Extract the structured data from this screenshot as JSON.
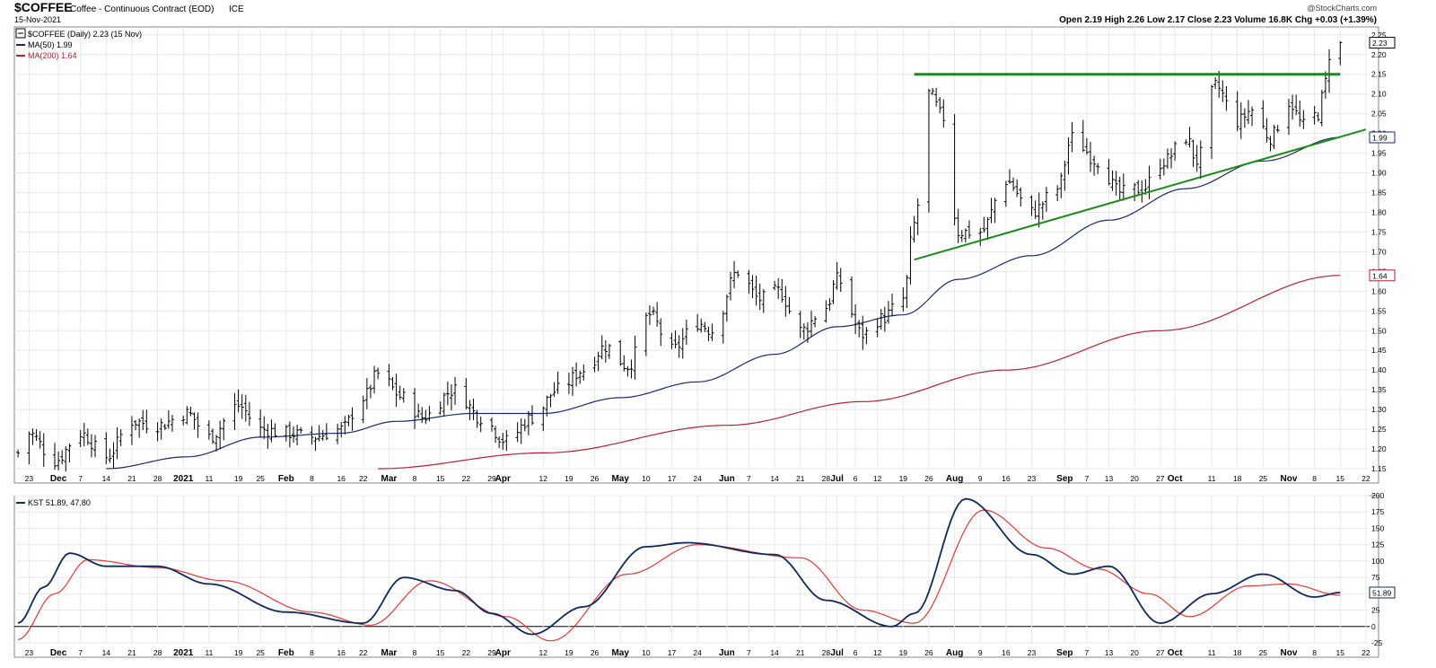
{
  "header": {
    "symbol": "$COFFEE",
    "name": "Coffee - Continuous Contract (EOD)",
    "exchange": "ICE",
    "date": "15-Nov-2021",
    "copyright": "@StockCharts.com",
    "ohlc_line": "Open 2.19  High 2.26  Low 2.17  Close 2.23  Volume 16.8K  Chg +0.03 (+1.39%)"
  },
  "legend": {
    "price": "$COFFEE (Daily) 2.23 (15 Nov)",
    "ma50": "MA(50) 1.99",
    "ma200": "MA(200) 1.64",
    "kst": "KST 51.89, 47.80"
  },
  "colors": {
    "price_bars": "#000000",
    "ma50": "#1a2a6c",
    "ma200": "#b32235",
    "trendline": "#1a8a1a",
    "kst": "#0f2a5a",
    "kst_signal": "#e03a3a",
    "grid": "#e8e8e8"
  },
  "axis": {
    "months": [
      {
        "label": "Dec",
        "bold": true
      },
      {
        "label": "2021",
        "bold": true
      },
      {
        "label": "Feb",
        "bold": true
      },
      {
        "label": "Mar",
        "bold": true
      },
      {
        "label": "Apr",
        "bold": true
      },
      {
        "label": "May",
        "bold": true
      },
      {
        "label": "Jun",
        "bold": true
      },
      {
        "label": "Jul",
        "bold": true
      },
      {
        "label": "Aug",
        "bold": true
      },
      {
        "label": "Sep",
        "bold": true
      },
      {
        "label": "Oct",
        "bold": true
      },
      {
        "label": "Nov",
        "bold": true
      }
    ],
    "x_tick_labels": [
      "23",
      "Dec",
      "7",
      "14",
      "21",
      "28",
      "2021",
      "11",
      "19",
      "25",
      "Feb",
      "8",
      "16",
      "22",
      "Mar",
      "8",
      "15",
      "22",
      "29",
      "Apr",
      "12",
      "19",
      "26",
      "May",
      "10",
      "17",
      "24",
      "Jun",
      "7",
      "14",
      "21",
      "28",
      "Jul",
      "6",
      "12",
      "19",
      "26",
      "Aug",
      "9",
      "16",
      "23",
      "Sep",
      "7",
      "13",
      "20",
      "27",
      "Oct",
      "11",
      "18",
      "25",
      "Nov",
      "8",
      "15",
      "22"
    ]
  },
  "chart_data": [
    {
      "type": "ohlc-bar",
      "title": "$COFFEE (Daily) 2.23 (15 Nov)",
      "ylim": [
        1.15,
        2.27
      ],
      "y_ticks": [
        "2.25",
        "2.20",
        "2.15",
        "2.10",
        "2.05",
        "2.00",
        "1.95",
        "1.90",
        "1.85",
        "1.80",
        "1.75",
        "1.70",
        "1.65",
        "1.60",
        "1.55",
        "1.50",
        "1.45",
        "1.40",
        "1.35",
        "1.30",
        "1.25",
        "1.20",
        "1.15"
      ],
      "last_value_tag": "2.23",
      "price_key_points": [
        {
          "date": "2020-11-20",
          "close": 1.19
        },
        {
          "date": "2020-11-23",
          "close": 1.24
        },
        {
          "date": "2020-11-30",
          "close": 1.17
        },
        {
          "date": "2020-12-07",
          "close": 1.24
        },
        {
          "date": "2020-12-14",
          "close": 1.18
        },
        {
          "date": "2020-12-21",
          "close": 1.27
        },
        {
          "date": "2020-12-28",
          "close": 1.26
        },
        {
          "date": "2021-01-05",
          "close": 1.29
        },
        {
          "date": "2021-01-11",
          "close": 1.23
        },
        {
          "date": "2021-01-19",
          "close": 1.31
        },
        {
          "date": "2021-01-25",
          "close": 1.25
        },
        {
          "date": "2021-02-01",
          "close": 1.24
        },
        {
          "date": "2021-02-08",
          "close": 1.23
        },
        {
          "date": "2021-02-16",
          "close": 1.25
        },
        {
          "date": "2021-02-22",
          "close": 1.33
        },
        {
          "date": "2021-02-26",
          "close": 1.39
        },
        {
          "date": "2021-03-05",
          "close": 1.33
        },
        {
          "date": "2021-03-10",
          "close": 1.28
        },
        {
          "date": "2021-03-19",
          "close": 1.35
        },
        {
          "date": "2021-03-26",
          "close": 1.28
        },
        {
          "date": "2021-04-02",
          "close": 1.22
        },
        {
          "date": "2021-04-09",
          "close": 1.28
        },
        {
          "date": "2021-04-16",
          "close": 1.35
        },
        {
          "date": "2021-04-23",
          "close": 1.4
        },
        {
          "date": "2021-04-29",
          "close": 1.46
        },
        {
          "date": "2021-05-05",
          "close": 1.41
        },
        {
          "date": "2021-05-11",
          "close": 1.54
        },
        {
          "date": "2021-05-17",
          "close": 1.45
        },
        {
          "date": "2021-05-24",
          "close": 1.52
        },
        {
          "date": "2021-05-28",
          "close": 1.5
        },
        {
          "date": "2021-06-04",
          "close": 1.65
        },
        {
          "date": "2021-06-10",
          "close": 1.58
        },
        {
          "date": "2021-06-15",
          "close": 1.6
        },
        {
          "date": "2021-06-21",
          "close": 1.5
        },
        {
          "date": "2021-06-28",
          "close": 1.56
        },
        {
          "date": "2021-07-01",
          "close": 1.63
        },
        {
          "date": "2021-07-08",
          "close": 1.49
        },
        {
          "date": "2021-07-13",
          "close": 1.53
        },
        {
          "date": "2021-07-19",
          "close": 1.58
        },
        {
          "date": "2021-07-22",
          "close": 1.77
        },
        {
          "date": "2021-07-26",
          "close": 2.1
        },
        {
          "date": "2021-07-30",
          "close": 2.04
        },
        {
          "date": "2021-08-03",
          "close": 1.75
        },
        {
          "date": "2021-08-09",
          "close": 1.75
        },
        {
          "date": "2021-08-16",
          "close": 1.88
        },
        {
          "date": "2021-08-23",
          "close": 1.8
        },
        {
          "date": "2021-08-30",
          "close": 1.86
        },
        {
          "date": "2021-09-03",
          "close": 1.99
        },
        {
          "date": "2021-09-10",
          "close": 1.93
        },
        {
          "date": "2021-09-16",
          "close": 1.85
        },
        {
          "date": "2021-09-22",
          "close": 1.86
        },
        {
          "date": "2021-09-28",
          "close": 1.93
        },
        {
          "date": "2021-10-04",
          "close": 1.99
        },
        {
          "date": "2021-10-07",
          "close": 1.93
        },
        {
          "date": "2021-10-12",
          "close": 2.12
        },
        {
          "date": "2021-10-18",
          "close": 2.03
        },
        {
          "date": "2021-10-22",
          "close": 2.06
        },
        {
          "date": "2021-10-27",
          "close": 1.99
        },
        {
          "date": "2021-11-01",
          "close": 2.08
        },
        {
          "date": "2021-11-05",
          "close": 2.02
        },
        {
          "date": "2021-11-09",
          "close": 2.05
        },
        {
          "date": "2021-11-11",
          "close": 2.13
        },
        {
          "date": "2021-11-12",
          "close": 2.2
        },
        {
          "date": "2021-11-15",
          "close": 2.23
        }
      ],
      "series": [
        {
          "name": "MA(50) 1.99",
          "value_tag": "1.99",
          "points": [
            {
              "date": "2020-12-14",
              "value": 1.15
            },
            {
              "date": "2021-01-05",
              "value": 1.18
            },
            {
              "date": "2021-01-25",
              "value": 1.23
            },
            {
              "date": "2021-02-16",
              "value": 1.24
            },
            {
              "date": "2021-03-03",
              "value": 1.27
            },
            {
              "date": "2021-03-24",
              "value": 1.29
            },
            {
              "date": "2021-04-12",
              "value": 1.29
            },
            {
              "date": "2021-05-03",
              "value": 1.33
            },
            {
              "date": "2021-05-24",
              "value": 1.37
            },
            {
              "date": "2021-06-14",
              "value": 1.44
            },
            {
              "date": "2021-07-01",
              "value": 1.51
            },
            {
              "date": "2021-07-19",
              "value": 1.54
            },
            {
              "date": "2021-08-03",
              "value": 1.63
            },
            {
              "date": "2021-08-23",
              "value": 1.69
            },
            {
              "date": "2021-09-13",
              "value": 1.78
            },
            {
              "date": "2021-10-04",
              "value": 1.86
            },
            {
              "date": "2021-10-25",
              "value": 1.93
            },
            {
              "date": "2021-11-15",
              "value": 1.99
            }
          ]
        },
        {
          "name": "MA(200) 1.64",
          "value_tag": "1.64",
          "points": [
            {
              "date": "2021-02-26",
              "value": 1.15
            },
            {
              "date": "2021-04-12",
              "value": 1.19
            },
            {
              "date": "2021-06-01",
              "value": 1.26
            },
            {
              "date": "2021-07-08",
              "value": 1.32
            },
            {
              "date": "2021-08-16",
              "value": 1.4
            },
            {
              "date": "2021-09-27",
              "value": 1.5
            },
            {
              "date": "2021-11-15",
              "value": 1.64
            }
          ]
        }
      ],
      "trendlines": [
        {
          "name": "resistance",
          "from": {
            "date": "2021-07-22",
            "value": 2.15
          },
          "to": {
            "date": "2021-11-15",
            "value": 2.15
          }
        },
        {
          "name": "support",
          "from": {
            "date": "2021-07-22",
            "value": 1.68
          },
          "to": {
            "date": "2021-11-22",
            "value": 2.01
          }
        }
      ]
    },
    {
      "type": "line",
      "title": "KST 51.89, 47.80",
      "ylim": [
        -25,
        200
      ],
      "y_ticks": [
        "200",
        "175",
        "150",
        "125",
        "100",
        "75",
        "50",
        "25",
        "0",
        "-25"
      ],
      "zero_line": true,
      "last_value_tag": "51.89",
      "series": [
        {
          "name": "KST",
          "points": [
            {
              "date": "2020-11-20",
              "value": 5
            },
            {
              "date": "2020-11-27",
              "value": 60
            },
            {
              "date": "2020-12-04",
              "value": 112
            },
            {
              "date": "2020-12-14",
              "value": 92
            },
            {
              "date": "2020-12-28",
              "value": 92
            },
            {
              "date": "2021-01-11",
              "value": 65
            },
            {
              "date": "2021-02-01",
              "value": 22
            },
            {
              "date": "2021-02-22",
              "value": 5
            },
            {
              "date": "2021-03-05",
              "value": 75
            },
            {
              "date": "2021-03-19",
              "value": 55
            },
            {
              "date": "2021-03-29",
              "value": 20
            },
            {
              "date": "2021-04-09",
              "value": -12
            },
            {
              "date": "2021-04-23",
              "value": 30
            },
            {
              "date": "2021-05-10",
              "value": 122
            },
            {
              "date": "2021-05-21",
              "value": 128
            },
            {
              "date": "2021-06-14",
              "value": 110
            },
            {
              "date": "2021-06-28",
              "value": 40
            },
            {
              "date": "2021-07-16",
              "value": 0
            },
            {
              "date": "2021-07-22",
              "value": 20
            },
            {
              "date": "2021-08-05",
              "value": 195
            },
            {
              "date": "2021-08-23",
              "value": 110
            },
            {
              "date": "2021-09-03",
              "value": 80
            },
            {
              "date": "2021-09-13",
              "value": 92
            },
            {
              "date": "2021-09-27",
              "value": 5
            },
            {
              "date": "2021-10-11",
              "value": 50
            },
            {
              "date": "2021-10-25",
              "value": 80
            },
            {
              "date": "2021-11-08",
              "value": 45
            },
            {
              "date": "2021-11-15",
              "value": 51.89
            }
          ]
        },
        {
          "name": "KST signal",
          "points": [
            {
              "date": "2020-11-20",
              "value": -20
            },
            {
              "date": "2020-11-30",
              "value": 50
            },
            {
              "date": "2020-12-09",
              "value": 102
            },
            {
              "date": "2020-12-28",
              "value": 90
            },
            {
              "date": "2021-01-15",
              "value": 70
            },
            {
              "date": "2021-02-08",
              "value": 22
            },
            {
              "date": "2021-02-24",
              "value": 2
            },
            {
              "date": "2021-03-12",
              "value": 70
            },
            {
              "date": "2021-04-02",
              "value": 15
            },
            {
              "date": "2021-04-14",
              "value": -22
            },
            {
              "date": "2021-05-05",
              "value": 80
            },
            {
              "date": "2021-05-24",
              "value": 125
            },
            {
              "date": "2021-06-21",
              "value": 105
            },
            {
              "date": "2021-07-08",
              "value": 25
            },
            {
              "date": "2021-07-22",
              "value": 5
            },
            {
              "date": "2021-08-10",
              "value": 178
            },
            {
              "date": "2021-08-27",
              "value": 120
            },
            {
              "date": "2021-09-10",
              "value": 88
            },
            {
              "date": "2021-09-24",
              "value": 50
            },
            {
              "date": "2021-10-05",
              "value": 15
            },
            {
              "date": "2021-10-21",
              "value": 62
            },
            {
              "date": "2021-11-01",
              "value": 65
            },
            {
              "date": "2021-11-15",
              "value": 47.8
            }
          ]
        }
      ]
    }
  ]
}
